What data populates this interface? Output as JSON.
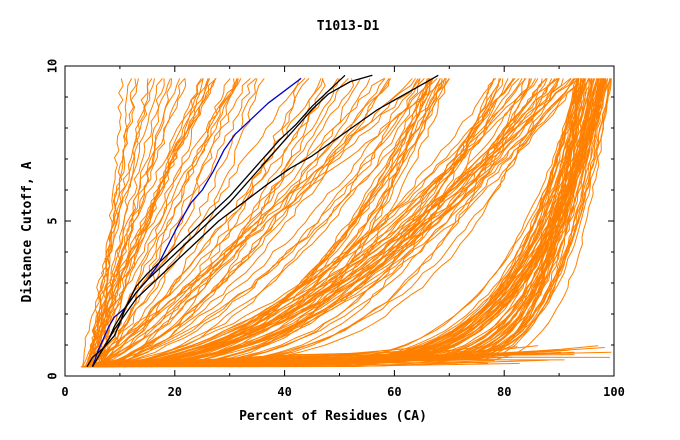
{
  "chart_data": {
    "type": "line",
    "title": "T1013-D1",
    "xlabel": "Percent of Residues (CA)",
    "ylabel": "Distance Cutoff, A",
    "xlim": [
      0,
      100
    ],
    "ylim": [
      0,
      10
    ],
    "xticks": [
      0,
      20,
      40,
      60,
      80,
      100
    ],
    "yticks": [
      0,
      5,
      10
    ],
    "colors": {
      "orange": "#ff8000",
      "blue": "#0000cc",
      "black": "#000000"
    },
    "highlight_series": [
      {
        "name": "blue-model",
        "color": "blue",
        "points": [
          [
            5,
            0.3
          ],
          [
            6,
            0.8
          ],
          [
            7,
            1.2
          ],
          [
            8,
            1.6
          ],
          [
            9,
            1.9
          ],
          [
            11,
            2.2
          ],
          [
            13,
            2.7
          ],
          [
            15,
            3.1
          ],
          [
            17,
            3.6
          ],
          [
            19,
            4.3
          ],
          [
            21,
            5.0
          ],
          [
            23,
            5.6
          ],
          [
            25,
            6.0
          ],
          [
            27,
            6.6
          ],
          [
            29,
            7.3
          ],
          [
            31,
            7.8
          ],
          [
            34,
            8.3
          ],
          [
            37,
            8.8
          ],
          [
            40,
            9.2
          ],
          [
            43,
            9.6
          ]
        ]
      },
      {
        "name": "black-model-1",
        "color": "black",
        "points": [
          [
            5,
            0.3
          ],
          [
            6,
            0.6
          ],
          [
            7,
            0.9
          ],
          [
            8,
            1.1
          ],
          [
            9,
            1.3
          ],
          [
            10,
            1.7
          ],
          [
            11,
            2.2
          ],
          [
            13,
            2.7
          ],
          [
            15,
            3.1
          ],
          [
            18,
            3.6
          ],
          [
            21,
            4.1
          ],
          [
            24,
            4.6
          ],
          [
            27,
            5.1
          ],
          [
            30,
            5.6
          ],
          [
            33,
            6.2
          ],
          [
            36,
            6.8
          ],
          [
            39,
            7.4
          ],
          [
            42,
            8.0
          ],
          [
            45,
            8.6
          ],
          [
            48,
            9.1
          ],
          [
            52,
            9.5
          ],
          [
            56,
            9.7
          ]
        ]
      },
      {
        "name": "black-model-2",
        "color": "black",
        "points": [
          [
            4,
            0.3
          ],
          [
            5,
            0.6
          ],
          [
            7,
            0.9
          ],
          [
            8,
            1.2
          ],
          [
            9,
            1.6
          ],
          [
            11,
            2.2
          ],
          [
            13,
            2.9
          ],
          [
            15,
            3.3
          ],
          [
            18,
            3.8
          ],
          [
            21,
            4.3
          ],
          [
            24,
            4.8
          ],
          [
            27,
            5.3
          ],
          [
            30,
            5.8
          ],
          [
            33,
            6.4
          ],
          [
            36,
            7.0
          ],
          [
            39,
            7.6
          ],
          [
            42,
            8.1
          ],
          [
            45,
            8.7
          ],
          [
            48,
            9.2
          ],
          [
            51,
            9.7
          ]
        ]
      },
      {
        "name": "black-model-3",
        "color": "black",
        "points": [
          [
            5,
            0.3
          ],
          [
            7,
            0.9
          ],
          [
            9,
            1.5
          ],
          [
            11,
            2.0
          ],
          [
            13,
            2.5
          ],
          [
            16,
            3.0
          ],
          [
            19,
            3.5
          ],
          [
            22,
            4.0
          ],
          [
            25,
            4.5
          ],
          [
            28,
            5.0
          ],
          [
            31,
            5.4
          ],
          [
            34,
            5.8
          ],
          [
            37,
            6.2
          ],
          [
            41,
            6.7
          ],
          [
            45,
            7.1
          ],
          [
            49,
            7.6
          ],
          [
            53,
            8.1
          ],
          [
            57,
            8.6
          ],
          [
            61,
            9.0
          ],
          [
            64,
            9.3
          ],
          [
            67,
            9.6
          ],
          [
            68,
            9.7
          ]
        ]
      }
    ],
    "background_series_note": "About 200 orange model curves spanning the full range from steep (near x=5-15) to flat (reaching x~99 at low cutoffs)"
  }
}
